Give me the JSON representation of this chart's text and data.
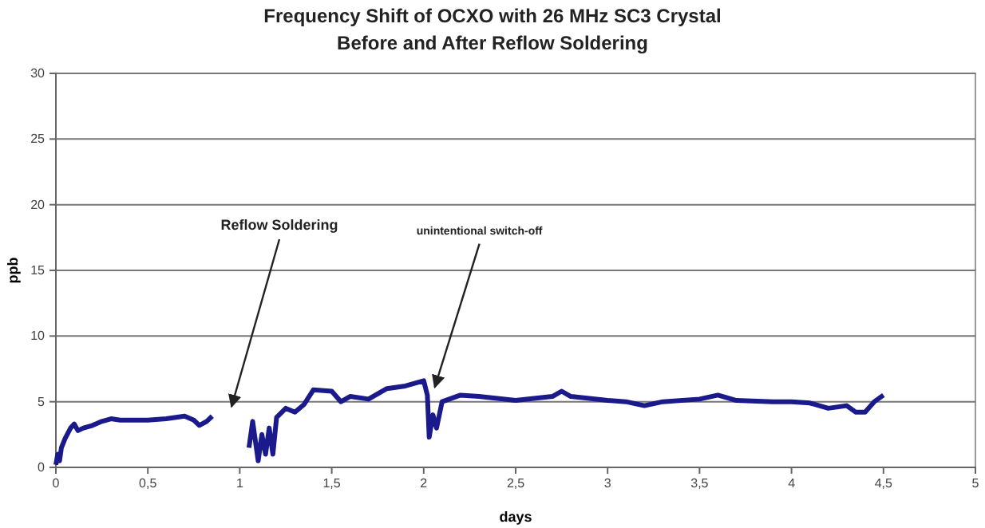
{
  "chart_data": {
    "type": "line",
    "title": "Frequency Shift of OCXO with 26 MHz SC3 Crystal\nBefore and After Reflow Soldering",
    "xlabel": "days",
    "ylabel": "ppb",
    "xlim": [
      0,
      5
    ],
    "xticks": [
      0,
      {
        "value": 0.5,
        "label": "0,5"
      },
      1,
      {
        "value": 1.5,
        "label": "1,5"
      },
      2,
      {
        "value": 2.5,
        "label": "2,5"
      },
      3,
      {
        "value": 3.5,
        "label": "3,5"
      },
      4,
      {
        "value": 4.5,
        "label": "4,5"
      },
      5
    ],
    "ylim": [
      0,
      30
    ],
    "yticks": [
      0,
      5,
      10,
      15,
      20,
      25,
      30
    ],
    "grid": "y",
    "marker": "none",
    "line_style": "solid",
    "annotations": [
      "Reflow Soldering",
      {
        "text": "unintentional switch-off",
        "x": 2.06,
        "y": 6.1
      }
    ],
    "series": [
      {
        "color": "#1a1a8c",
        "x": [
          0,
          0.01,
          0.02,
          0.03,
          0.05,
          0.08,
          0.1,
          0.12,
          0.15,
          0.2,
          0.25,
          0.3,
          0.35,
          0.4,
          0.5,
          0.6,
          0.7,
          0.75,
          0.78,
          0.82,
          0.85
        ],
        "values": [
          0.2,
          1,
          0.5,
          1.5,
          2.2,
          3,
          3.3,
          2.8,
          3,
          3.2,
          3.5,
          3.7,
          3.6,
          3.6,
          3.6,
          3.7,
          3.9,
          3.6,
          3.2,
          3.5,
          3.9
        ]
      },
      {
        "color": "#1a1a8c",
        "x": [
          1.05,
          1.07,
          1.09,
          1.1,
          1.12,
          1.14,
          1.16,
          1.18,
          1.2,
          1.25,
          1.3,
          1.35,
          1.4,
          1.5,
          1.55,
          1.6,
          1.7,
          1.8,
          1.9,
          1.95,
          2.0,
          2.02,
          2.03,
          2.05,
          2.07,
          2.1,
          2.2,
          2.3,
          2.5,
          2.7,
          2.75,
          2.8,
          3,
          3.1,
          3.2,
          3.3,
          3.5,
          3.6,
          3.7,
          3.9,
          4.0,
          4.1,
          4.2,
          4.3,
          4.35,
          4.4,
          4.45,
          4.5
        ],
        "values": [
          1.5,
          3.5,
          1.5,
          0.5,
          2.5,
          1,
          3,
          1,
          3.8,
          4.5,
          4.2,
          4.8,
          5.9,
          5.8,
          5,
          5.4,
          5.2,
          6,
          6.2,
          6.4,
          6.6,
          5.5,
          2.3,
          4,
          3,
          5,
          5.5,
          5.4,
          5.1,
          5.4,
          5.8,
          5.4,
          5.1,
          5,
          4.7,
          5,
          5.2,
          5.5,
          5.1,
          5,
          5,
          4.9,
          4.5,
          4.7,
          4.2,
          4.2,
          5,
          5.5
        ]
      }
    ]
  }
}
